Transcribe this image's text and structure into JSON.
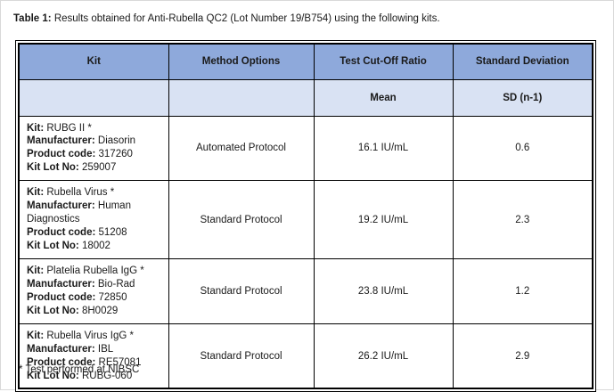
{
  "caption": {
    "label": "Table 1:",
    "text": "Results obtained for Anti-Rubella QC2 (Lot Number 19/B754) using the following kits."
  },
  "colors": {
    "header_bg": "#8EA9DB",
    "subheader_bg": "#D9E2F3",
    "border": "#000000"
  },
  "labels": {
    "kit": "Kit:",
    "manufacturer": "Manufacturer:",
    "product_code": "Product code:",
    "kit_lot_no": "Kit Lot No:"
  },
  "table": {
    "columns": [
      "Kit",
      "Method Options",
      "Test Cut-Off Ratio",
      "Standard Deviation"
    ],
    "subheaders": [
      "",
      "",
      "Mean",
      "SD (n-1)"
    ],
    "rows": [
      {
        "kit_name": "RUBG II *",
        "manufacturer": "Diasorin",
        "product_code": "317260",
        "kit_lot_no": "259007",
        "method": "Automated Protocol",
        "mean": "16.1 IU/mL",
        "sd": "0.6"
      },
      {
        "kit_name": "Rubella Virus *",
        "manufacturer": "Human Diagnostics",
        "product_code": "51208",
        "kit_lot_no": "18002",
        "method": "Standard Protocol",
        "mean": "19.2 IU/mL",
        "sd": "2.3"
      },
      {
        "kit_name": "Platelia Rubella IgG *",
        "manufacturer": "Bio-Rad",
        "product_code": "72850",
        "kit_lot_no": "8H0029",
        "method": "Standard Protocol",
        "mean": "23.8 IU/mL",
        "sd": "1.2"
      },
      {
        "kit_name": "Rubella Virus IgG *",
        "manufacturer": "IBL",
        "product_code": "RE57081",
        "kit_lot_no": "RUBG-060",
        "method": "Standard Protocol",
        "mean": "26.2 IU/mL",
        "sd": "2.9"
      }
    ]
  },
  "footnote": "* Test performed at NIBSC"
}
